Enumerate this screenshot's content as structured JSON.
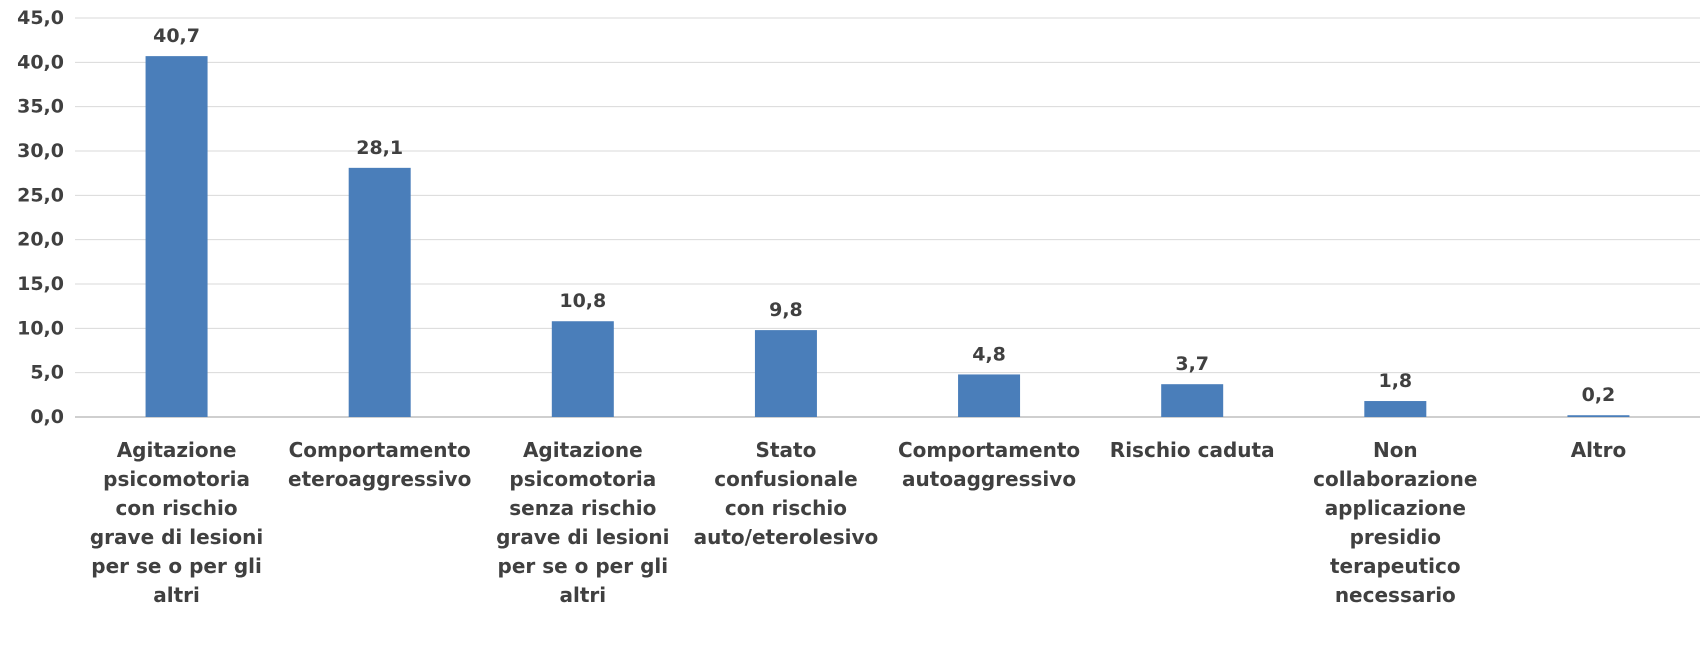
{
  "chart_data": {
    "type": "bar",
    "title": "",
    "xlabel": "",
    "ylabel": "",
    "ylim": [
      0,
      45
    ],
    "yticks": [
      "0,0",
      "5,0",
      "10,0",
      "15,0",
      "20,0",
      "25,0",
      "30,0",
      "35,0",
      "40,0",
      "45,0"
    ],
    "grid": true,
    "legend": "none",
    "bar_color": "#4a7eba",
    "categories": [
      "Agitazione psicomotoria con rischio grave di lesioni per se o per gli altri",
      "Comportamento eteroaggressivo",
      "Agitazione psicomotoria senza rischio grave di lesioni per se o per gli altri",
      "Stato confusionale con rischio auto/eterolesivo",
      "Comportamento autoaggressivo",
      "Rischio caduta",
      "Non collaborazione applicazione presidio terapeutico necessario",
      "Altro"
    ],
    "values": [
      40.7,
      28.1,
      10.8,
      9.8,
      4.8,
      3.7,
      1.8,
      0.2
    ],
    "data_labels": [
      "40,7",
      "28,1",
      "10,8",
      "9,8",
      "4,8",
      "3,7",
      "1,8",
      "0,2"
    ]
  }
}
